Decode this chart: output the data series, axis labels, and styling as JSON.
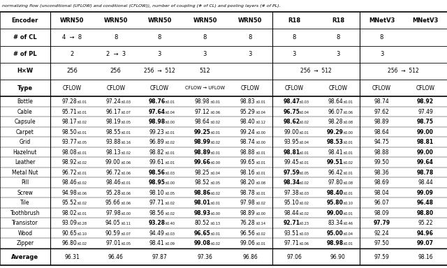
{
  "caption": "normalizing flow (unconditional (UFLOW) and conditional (CFLOW)), number of coupling (# of CL) and pooling layers (# of PL).",
  "col_headers": [
    "Encoder",
    "WRN50",
    "WRN50",
    "WRN50",
    "WRN50",
    "WRN50",
    "R18",
    "R18",
    "MNetV3",
    "MNetV3"
  ],
  "categories": [
    "Bottle",
    "Cable",
    "Capsule",
    "Carpet",
    "Grid",
    "Hazelnut",
    "Leather",
    "Metal Nut",
    "Pill",
    "Screw",
    "Tile",
    "Toothbrush",
    "Transistor",
    "Wood",
    "Zipper"
  ],
  "data": [
    [
      "97.28",
      "±0.01",
      "97.24",
      "±0.03",
      "98.76",
      "±0.01",
      "98.98",
      "±0.01",
      "98.83",
      "±0.01",
      "98.47",
      "±0.03",
      "98.64",
      "±0.01",
      "98.74",
      "98.92"
    ],
    [
      "95.71",
      "±0.01",
      "96.17",
      "±0.07",
      "97.64",
      "±0.04",
      "97.12",
      "±0.06",
      "95.29",
      "±0.04",
      "96.75",
      "±0.04",
      "96.07",
      "±0.06",
      "97.62",
      "97.49"
    ],
    [
      "98.17",
      "±0.02",
      "98.19",
      "±0.05",
      "98.98",
      "±0.00",
      "98.64",
      "±0.02",
      "98.40",
      "±0.12",
      "98.62",
      "±0.02",
      "98.28",
      "±0.08",
      "98.89",
      "98.75"
    ],
    [
      "98.50",
      "±0.01",
      "98.55",
      "±0.01",
      "99.23",
      "±0.01",
      "99.25",
      "±0.01",
      "99.24",
      "±0.00",
      "99.00",
      "±0.01",
      "99.29",
      "±0.00",
      "98.64",
      "99.00"
    ],
    [
      "93.77",
      "±0.05",
      "93.88",
      "±0.16",
      "96.89",
      "±0.02",
      "98.99",
      "±0.02",
      "98.74",
      "±0.00",
      "93.95",
      "±0.04",
      "98.53",
      "±0.01",
      "94.75",
      "98.81"
    ],
    [
      "98.08",
      "±0.01",
      "98.13",
      "±0.02",
      "98.82",
      "±0.01",
      "98.89",
      "±0.01",
      "98.88",
      "±0.01",
      "98.81",
      "±0.01",
      "98.41",
      "±0.01",
      "98.88",
      "99.00"
    ],
    [
      "98.92",
      "±0.02",
      "99.00",
      "±0.06",
      "99.61",
      "±0.01",
      "99.66",
      "±0.00",
      "99.65",
      "±0.01",
      "99.45",
      "±0.01",
      "99.51",
      "±0.02",
      "99.50",
      "99.64"
    ],
    [
      "96.72",
      "±0.01",
      "96.72",
      "±0.06",
      "98.56",
      "±0.03",
      "98.25",
      "±0.04",
      "98.16",
      "±0.01",
      "97.59",
      "±0.05",
      "96.42",
      "±0.01",
      "98.36",
      "98.78"
    ],
    [
      "98.46",
      "±0.02",
      "98.46",
      "±0.01",
      "98.95",
      "±0.00",
      "98.52",
      "±0.05",
      "98.20",
      "±0.08",
      "98.34",
      "±0.02",
      "97.80",
      "±0.08",
      "98.69",
      "98.44"
    ],
    [
      "94.98",
      "±0.06",
      "95.28",
      "±0.06",
      "98.10",
      "±0.05",
      "98.86",
      "±0.02",
      "98.78",
      "±0.01",
      "97.38",
      "±0.03",
      "98.40",
      "±0.01",
      "98.04",
      "99.09"
    ],
    [
      "95.52",
      "±0.02",
      "95.66",
      "±0.06",
      "97.71",
      "±0.02",
      "98.01",
      "±0.01",
      "97.98",
      "±0.02",
      "95.10",
      "±0.02",
      "95.80",
      "±0.10",
      "96.07",
      "96.48"
    ],
    [
      "98.02",
      "±0.01",
      "97.98",
      "±0.00",
      "98.56",
      "±0.02",
      "98.93",
      "±0.00",
      "98.89",
      "±0.00",
      "98.44",
      "±0.02",
      "99.00",
      "±0.01",
      "98.09",
      "98.80"
    ],
    [
      "93.09",
      "±0.28",
      "94.05",
      "±0.11",
      "93.28",
      "±0.40",
      "80.52",
      "±0.13",
      "76.28",
      "±0.14",
      "92.71",
      "±0.23",
      "83.34",
      "±0.46",
      "97.79",
      "95.22"
    ],
    [
      "90.65",
      "±0.10",
      "90.59",
      "±0.07",
      "94.49",
      "±0.03",
      "96.65",
      "±0.01",
      "96.56",
      "±0.02",
      "93.51",
      "±0.03",
      "95.00",
      "±0.04",
      "92.24",
      "94.96"
    ],
    [
      "96.80",
      "±0.02",
      "97.01",
      "±0.05",
      "98.41",
      "±0.09",
      "99.08",
      "±0.02",
      "99.06",
      "±0.01",
      "97.71",
      "±0.06",
      "98.98",
      "±0.01",
      "97.50",
      "99.07"
    ]
  ],
  "bold_mask": [
    [
      false,
      false,
      false,
      true,
      false,
      false,
      true,
      false,
      false,
      true
    ],
    [
      false,
      false,
      false,
      true,
      false,
      false,
      true,
      false,
      false,
      false
    ],
    [
      false,
      false,
      false,
      true,
      false,
      false,
      true,
      false,
      false,
      true
    ],
    [
      false,
      false,
      false,
      false,
      true,
      false,
      false,
      true,
      false,
      true
    ],
    [
      false,
      false,
      false,
      false,
      true,
      false,
      false,
      true,
      false,
      true
    ],
    [
      false,
      false,
      false,
      false,
      true,
      false,
      true,
      false,
      false,
      true
    ],
    [
      false,
      false,
      false,
      false,
      true,
      false,
      false,
      true,
      false,
      true
    ],
    [
      false,
      false,
      false,
      true,
      false,
      false,
      true,
      false,
      false,
      true
    ],
    [
      false,
      false,
      false,
      true,
      false,
      false,
      true,
      false,
      false,
      false
    ],
    [
      false,
      false,
      false,
      false,
      true,
      false,
      false,
      true,
      false,
      true
    ],
    [
      false,
      false,
      false,
      false,
      true,
      false,
      false,
      true,
      false,
      true
    ],
    [
      false,
      false,
      false,
      false,
      true,
      false,
      false,
      true,
      false,
      true
    ],
    [
      false,
      false,
      false,
      true,
      false,
      false,
      true,
      false,
      true,
      false
    ],
    [
      false,
      false,
      false,
      false,
      true,
      false,
      false,
      true,
      false,
      true
    ],
    [
      false,
      false,
      false,
      false,
      true,
      false,
      false,
      true,
      false,
      true
    ]
  ],
  "averages": [
    "Average",
    "96.31",
    "96.46",
    "97.87",
    "97.36",
    "96.86",
    "97.06",
    "96.90",
    "97.59",
    "98.16"
  ],
  "bg_color": "#ffffff"
}
